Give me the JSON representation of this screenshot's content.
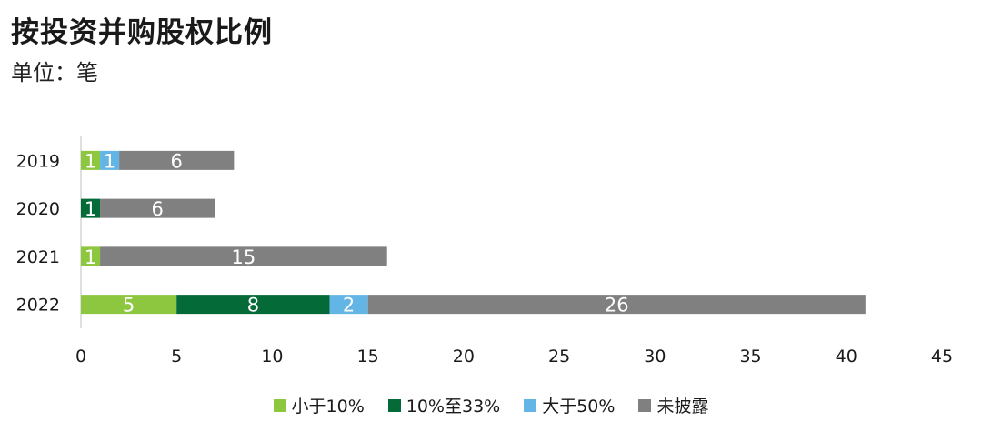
{
  "header": {
    "title": "按投资并购股权比例",
    "subtitle": "单位：笔"
  },
  "chart_data": {
    "type": "bar",
    "orientation": "horizontal",
    "stacked": true,
    "categories": [
      "2019",
      "2020",
      "2021",
      "2022"
    ],
    "series": [
      {
        "name": "小于10%",
        "color": "#8dc63f",
        "values": [
          1,
          0,
          1,
          5
        ]
      },
      {
        "name": "10%至33%",
        "color": "#046a38",
        "values": [
          0,
          1,
          0,
          8
        ]
      },
      {
        "name": "大于50%",
        "color": "#62b5e5",
        "values": [
          1,
          0,
          0,
          2
        ]
      },
      {
        "name": "未披露",
        "color": "#808080",
        "values": [
          6,
          6,
          15,
          26
        ]
      }
    ],
    "xlim": [
      0,
      45
    ],
    "xticks": [
      0,
      5,
      10,
      15,
      20,
      25,
      30,
      35,
      40,
      45
    ],
    "grid": false,
    "legend_position": "bottom",
    "data_labels": true
  }
}
